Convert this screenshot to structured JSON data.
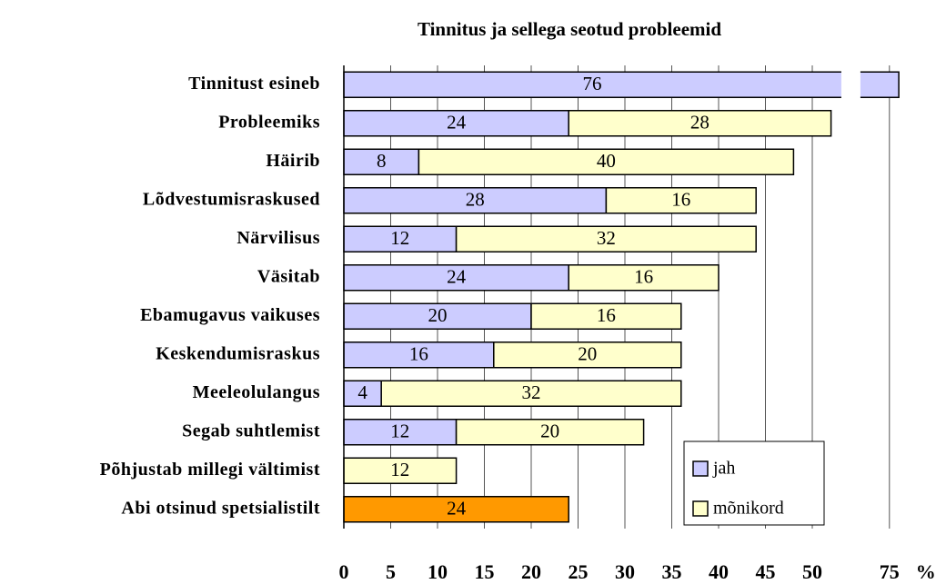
{
  "chart_data": {
    "type": "bar",
    "orientation": "horizontal",
    "stacked": true,
    "title": "Tinnitus ja sellega seotud probleemid",
    "x_label": "%",
    "categories": [
      "Tinnitust esineb",
      "Probleemiks",
      "Häirib",
      "Lõdvestumisraskused",
      "Närvilisus",
      "Väsitab",
      "Ebamugavus vaikuses",
      "Keskendumisraskus",
      "Meeleolulangus",
      "Segab suhtlemist",
      "Põhjustab millegi vältimist",
      "Abi otsinud spetsialistilt"
    ],
    "series": [
      {
        "name": "jah",
        "color": "#ccccff",
        "values": [
          76,
          24,
          8,
          28,
          12,
          24,
          20,
          16,
          4,
          12,
          null,
          24
        ],
        "point_colors": [
          null,
          null,
          null,
          null,
          null,
          null,
          null,
          null,
          null,
          null,
          null,
          "#ff9900"
        ]
      },
      {
        "name": "mõnikord",
        "color": "#ffffcc",
        "values": [
          null,
          28,
          40,
          16,
          32,
          16,
          16,
          20,
          32,
          20,
          12,
          null
        ]
      }
    ],
    "xlim": [
      0,
      77
    ],
    "axis_break": [
      53,
      72
    ],
    "xticks": [
      0,
      5,
      10,
      15,
      20,
      25,
      30,
      35,
      40,
      45,
      50,
      75
    ],
    "grid": true,
    "legend": "bottom-right"
  }
}
